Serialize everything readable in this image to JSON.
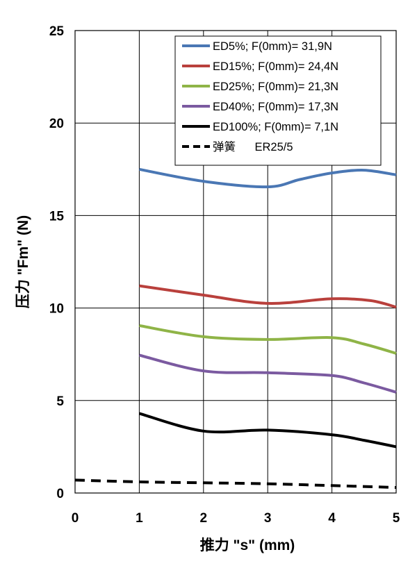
{
  "chart_data": {
    "type": "line",
    "title": "",
    "xlabel": "推力 \"s\" (mm)",
    "ylabel": "压力 \"Fm\" (N)",
    "xlim": [
      0,
      5
    ],
    "ylim": [
      0,
      25
    ],
    "x_ticks": [
      "0",
      "1",
      "2",
      "3",
      "4",
      "5"
    ],
    "y_ticks": [
      "0",
      "5",
      "10",
      "15",
      "20",
      "25"
    ],
    "grid": true,
    "legend_position": "top-right",
    "series": [
      {
        "name": "ED5%; F(0mm)= 31,9N",
        "color": "#4a77b4",
        "dash": "solid",
        "x": [
          1,
          2,
          3,
          3.5,
          4,
          4.5,
          5
        ],
        "y": [
          17.5,
          16.85,
          16.55,
          16.95,
          17.3,
          17.45,
          17.2
        ]
      },
      {
        "name": "ED15%; F(0mm)= 24,4N",
        "color": "#b9403c",
        "dash": "solid",
        "x": [
          1,
          2,
          3,
          4,
          4.6,
          5
        ],
        "y": [
          11.2,
          10.7,
          10.25,
          10.5,
          10.4,
          10.05
        ]
      },
      {
        "name": "ED25%; F(0mm)= 21,3N",
        "color": "#8fb447",
        "dash": "solid",
        "x": [
          1,
          2,
          3,
          4,
          4.5,
          5
        ],
        "y": [
          9.05,
          8.45,
          8.3,
          8.4,
          8.05,
          7.55
        ]
      },
      {
        "name": "ED40%; F(0mm)= 17,3N",
        "color": "#7b5aa0",
        "dash": "solid",
        "x": [
          1,
          2,
          3,
          4,
          4.5,
          5
        ],
        "y": [
          7.45,
          6.6,
          6.5,
          6.35,
          5.95,
          5.45
        ]
      },
      {
        "name": "ED100%; F(0mm)= 7,1N",
        "color": "#000000",
        "dash": "solid",
        "x": [
          1,
          2,
          3,
          4,
          4.5,
          5
        ],
        "y": [
          4.3,
          3.35,
          3.4,
          3.15,
          2.85,
          2.5
        ]
      },
      {
        "name": "弹簧      ER25/5",
        "color": "#000000",
        "dash": "dashed",
        "x": [
          0,
          1,
          2,
          3,
          4,
          5
        ],
        "y": [
          0.7,
          0.6,
          0.55,
          0.5,
          0.4,
          0.3
        ]
      }
    ]
  }
}
